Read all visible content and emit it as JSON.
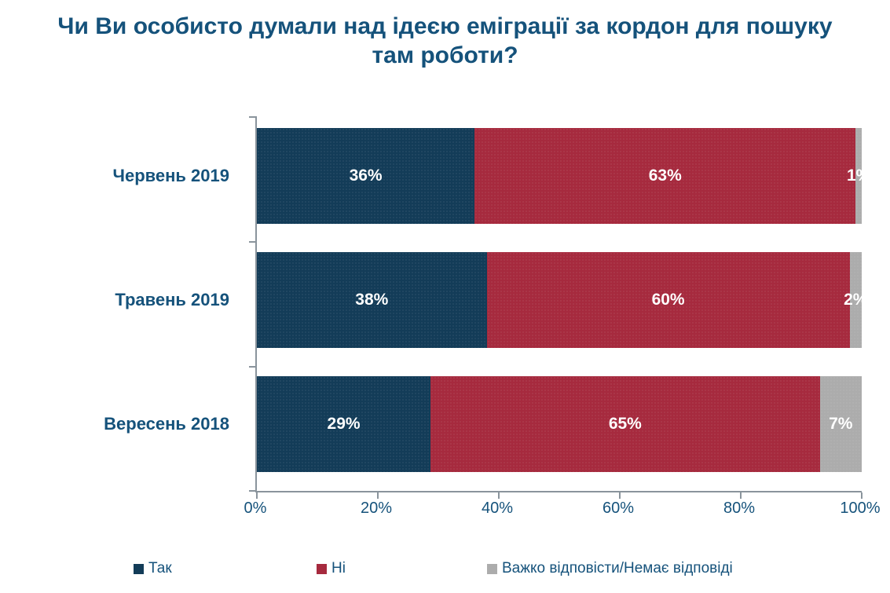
{
  "title": {
    "lines": [
      "Чи Ви особисто думали над ідеєю еміграції за кордон для пошуку",
      "там роботи?"
    ]
  },
  "chart_data": {
    "type": "bar",
    "orientation": "horizontal_stacked",
    "categories": [
      "Червень 2019",
      "Травень 2019",
      "Вересень 2018"
    ],
    "series": [
      {
        "name": "Так",
        "color": "#133C58",
        "values": [
          36,
          38,
          29
        ]
      },
      {
        "name": "Ні",
        "color": "#A62A3E",
        "values": [
          63,
          60,
          65
        ]
      },
      {
        "name": "Важко відповісти/Немає відповіді",
        "color": "#ACACAC",
        "values": [
          1,
          2,
          7
        ]
      }
    ],
    "value_label_suffix": "%",
    "x_ticks": [
      "0%",
      "20%",
      "40%",
      "60%",
      "80%",
      "100%"
    ],
    "xlim": [
      0,
      100
    ],
    "xlabel": "",
    "ylabel": "",
    "grid": false,
    "legend_position": "bottom"
  },
  "colors": {
    "text": "#15527B",
    "axis_line": "#8A949C",
    "value_label": "#FFFFFF"
  }
}
